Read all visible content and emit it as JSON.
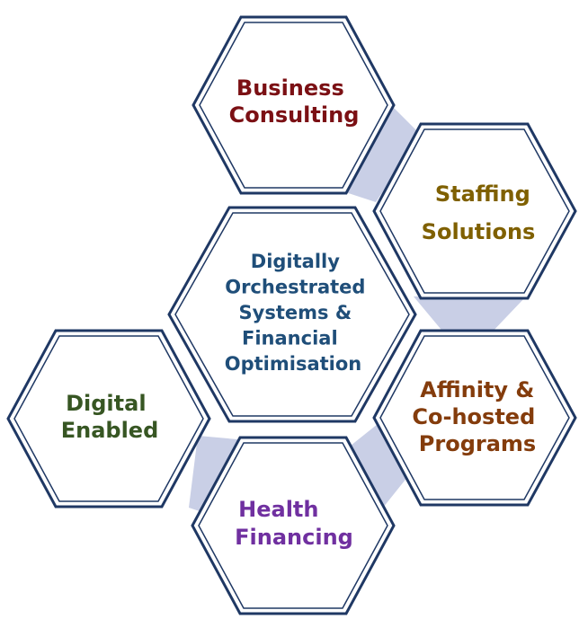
{
  "hexagons": [
    {
      "id": "business-consulting",
      "lines": [
        "Business",
        "Consulting"
      ],
      "color": "#7b1014"
    },
    {
      "id": "staffing-solutions",
      "lines": [
        "Staffing",
        "Solutions"
      ],
      "color": "#7f6000"
    },
    {
      "id": "central",
      "lines": [
        "Digitally",
        "Orchestrated",
        "Systems &",
        "Financial",
        "Optimisation"
      ],
      "color": "#1f4e79"
    },
    {
      "id": "affinity",
      "lines": [
        "Affinity &",
        "Co-hosted",
        "Programs"
      ],
      "color": "#843c0c"
    },
    {
      "id": "digital-enabled",
      "lines": [
        "Digital",
        "Enabled"
      ],
      "color": "#375623"
    },
    {
      "id": "health-financing",
      "lines": [
        "Health",
        "Financing"
      ],
      "color": "#7030a0"
    }
  ]
}
